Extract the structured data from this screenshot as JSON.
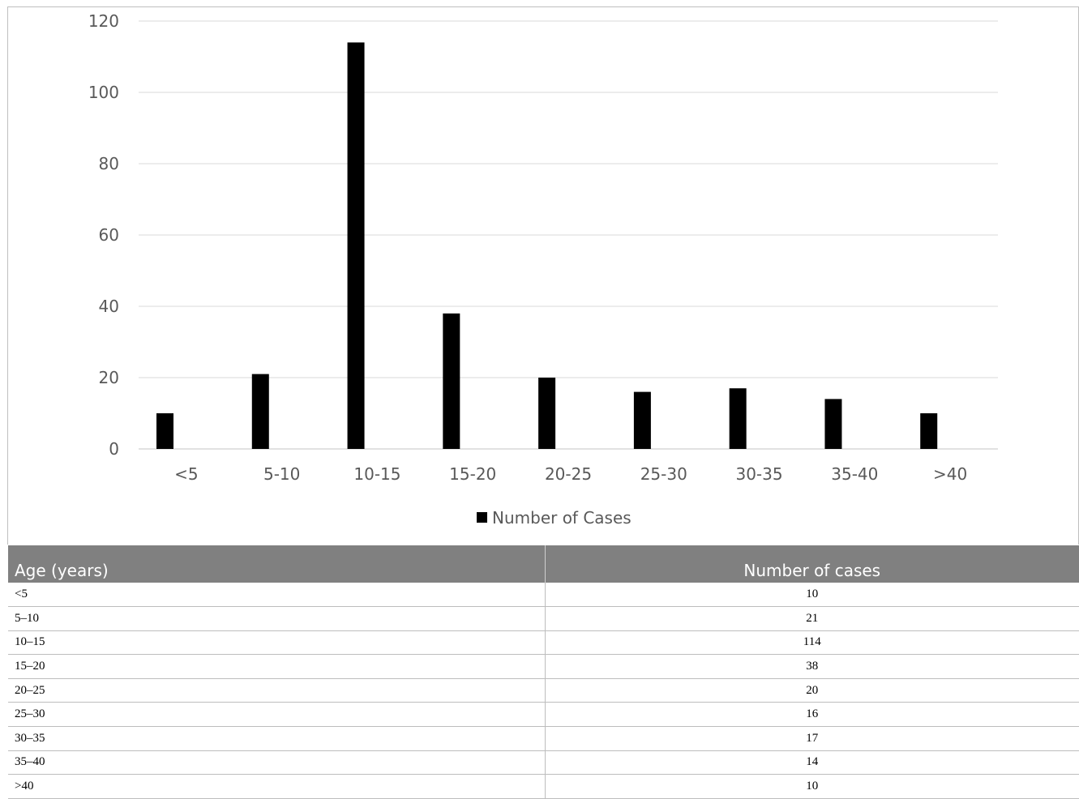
{
  "chart_data": {
    "type": "bar",
    "categories": [
      "<5",
      "5-10",
      "10-15",
      "15-20",
      "20-25",
      "25-30",
      "30-35",
      "35-40",
      ">40"
    ],
    "series": [
      {
        "name": "Number of Cases",
        "values": [
          10,
          21,
          114,
          38,
          20,
          16,
          17,
          14,
          10
        ],
        "color": "#000000"
      }
    ],
    "yticks": [
      0,
      20,
      40,
      60,
      80,
      100,
      120
    ],
    "ylim": [
      0,
      120
    ],
    "grid": true,
    "legend_position": "bottom",
    "title": "",
    "xlabel": "",
    "ylabel": ""
  },
  "table": {
    "headers": [
      "Age (years)",
      "Number of cases"
    ],
    "rows": [
      [
        "<5",
        "10"
      ],
      [
        "5–10",
        "21"
      ],
      [
        "10–15",
        "114"
      ],
      [
        "15–20",
        "38"
      ],
      [
        "20–25",
        "20"
      ],
      [
        "25–30",
        "16"
      ],
      [
        "30–35",
        "17"
      ],
      [
        "35–40",
        "14"
      ],
      [
        ">40",
        "10"
      ]
    ]
  },
  "colors": {
    "gridline": "#d9d9d9",
    "header_bg": "#808080",
    "bar": "#000000"
  }
}
